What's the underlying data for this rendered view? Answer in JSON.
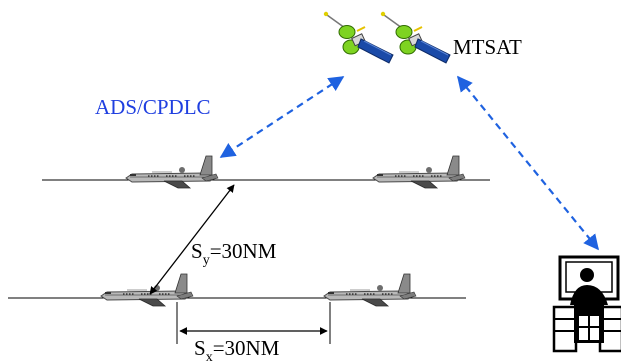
{
  "satellite": {
    "label": "MTSAT",
    "icon": "satellite-icon"
  },
  "link": {
    "label": "ADS/CPDLC",
    "color": "#1f62e0"
  },
  "ground": {
    "icon": "air-traffic-controller-icon"
  },
  "aircraft": {
    "icon": "airplane-icon"
  },
  "separation": {
    "lateral": {
      "symbol": "S",
      "subscript": "y",
      "value": "=30NM"
    },
    "longitudinal": {
      "symbol": "S",
      "subscript": "x",
      "value": "=30NM"
    }
  }
}
